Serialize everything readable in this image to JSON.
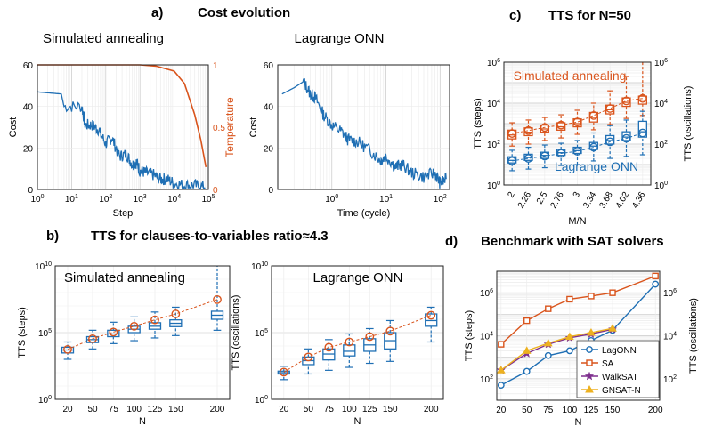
{
  "panels": {
    "a": {
      "letter": "a)",
      "title": "Cost evolution"
    },
    "b": {
      "letter": "b)",
      "title": "TTS for clauses-to-variables ratio≈4.3"
    },
    "c": {
      "letter": "c)",
      "title": "TTS for N=50"
    },
    "d": {
      "letter": "d)",
      "title": "Benchmark with SAT solvers"
    }
  },
  "colors": {
    "blue": "#1f6fb4",
    "orange": "#d9541c",
    "purple": "#7e2f8e",
    "yellow": "#edb120",
    "axis": "#222222",
    "grid": "#d9d9d9"
  },
  "chart_data": [
    {
      "id": "a1",
      "type": "line",
      "subtitle": "Simulated annealing",
      "xlabel": "Step",
      "ylabel": "Cost",
      "y2label": "Temperature",
      "xscale": "log",
      "xlim": [
        1,
        100000
      ],
      "ylim": [
        0,
        60
      ],
      "y2lim": [
        0,
        1
      ],
      "xticks": [
        "10^0",
        "10^1",
        "10^2",
        "10^3",
        "10^4",
        "10^5"
      ],
      "yticks": [
        "0",
        "20",
        "40",
        "60"
      ],
      "y2ticks": [
        "0",
        "0.5",
        "1"
      ],
      "series": [
        {
          "name": "Cost",
          "color": "#1f6fb4",
          "x": [
            1,
            5,
            6,
            20,
            25,
            40,
            60,
            100,
            150,
            250,
            400,
            600,
            800,
            1000,
            1500,
            2500,
            4000,
            6000,
            10000,
            20000,
            40000,
            80000
          ],
          "y": [
            47,
            46,
            40,
            40,
            31,
            31,
            29,
            22,
            25,
            16,
            17,
            12,
            13,
            9,
            8,
            7,
            5,
            5,
            3,
            2,
            2,
            1
          ]
        },
        {
          "name": "Temperature",
          "color": "#d9541c",
          "axis": "right",
          "x": [
            1,
            100,
            1000,
            3000,
            10000,
            20000,
            40000,
            60000,
            85000
          ],
          "y": [
            1,
            1,
            1,
            0.99,
            0.95,
            0.85,
            0.6,
            0.4,
            0.18
          ]
        }
      ]
    },
    {
      "id": "a2",
      "type": "line",
      "subtitle": "Lagrange ONN",
      "xlabel": "Time (cycle)",
      "ylabel": "Cost",
      "xscale": "log",
      "xlim": [
        0.1,
        150
      ],
      "ylim": [
        0,
        60
      ],
      "xticks": [
        "10^0",
        "10^1",
        "10^2"
      ],
      "yticks": [
        "0",
        "20",
        "40",
        "60"
      ],
      "series": [
        {
          "name": "Cost",
          "color": "#1f6fb4",
          "x": [
            0.12,
            0.2,
            0.3,
            0.4,
            0.5,
            0.7,
            1,
            1.5,
            2,
            3,
            5,
            8,
            10,
            15,
            20,
            30,
            50,
            80,
            100,
            130
          ],
          "y": [
            46,
            49,
            52,
            46,
            44,
            36,
            31,
            28,
            24,
            23,
            19,
            14,
            16,
            11,
            12,
            8,
            6,
            8,
            3,
            5
          ]
        }
      ]
    },
    {
      "id": "c",
      "type": "box",
      "xlabel": "M/N",
      "ylabel": "TTS (steps)",
      "y2label": "TTS (oscillations)",
      "yscale": "log",
      "ylim": [
        1,
        1000000
      ],
      "yticks": [
        "10^0",
        "10^2",
        "10^4",
        "10^6"
      ],
      "y2ticks": [
        "10^0",
        "10^2",
        "10^4",
        "10^6"
      ],
      "categories": [
        "2",
        "2.26",
        "2.5",
        "2.76",
        "3",
        "3.34",
        "3.68",
        "4.02",
        "4.36"
      ],
      "annotations": [
        "Simulated annealing",
        "Lagrange ONN"
      ],
      "series": [
        {
          "name": "Simulated annealing",
          "color": "#d9541c",
          "box": {
            "q1": [
              180,
              260,
              380,
              480,
              700,
              1200,
              3000,
              7000,
              9000
            ],
            "median": [
              280,
              380,
              550,
              700,
              1000,
              2000,
              4800,
              11000,
              14000
            ],
            "q3": [
              480,
              620,
              850,
              1100,
              1700,
              3500,
              8000,
              18000,
              22000
            ],
            "wlo": [
              80,
              100,
              150,
              200,
              300,
              500,
              900,
              1800,
              2500
            ],
            "whi": [
              1100,
              1500,
              2000,
              2700,
              4500,
              10000,
              40000,
              200000,
              1000000
            ]
          },
          "mean": [
            330,
            460,
            650,
            850,
            1200,
            2500,
            5500,
            13000,
            17000
          ]
        },
        {
          "name": "Lagrange ONN",
          "color": "#1f6fb4",
          "box": {
            "q1": [
              12,
              16,
              20,
              28,
              35,
              55,
              100,
              150,
              220
            ],
            "median": [
              16,
              22,
              28,
              38,
              48,
              80,
              150,
              220,
              400
            ],
            "q3": [
              24,
              32,
              40,
              55,
              70,
              120,
              260,
              400,
              1300
            ],
            "wlo": [
              5,
              6,
              7,
              9,
              10,
              15,
              20,
              25,
              30
            ],
            "whi": [
              50,
              70,
              90,
              110,
              150,
              350,
              800,
              1500,
              4000
            ]
          },
          "mean": [
            15,
            20,
            26,
            35,
            45,
            70,
            130,
            190,
            350
          ]
        }
      ]
    },
    {
      "id": "b1",
      "type": "box",
      "subtitle": "Simulated annealing",
      "xlabel": "N",
      "ylabel": "TTS (steps)",
      "yscale": "log",
      "ylim": [
        1,
        10000000000
      ],
      "yticks": [
        "10^0",
        "10^5",
        "10^10"
      ],
      "categories": [
        "20",
        "50",
        "75",
        "100",
        "125",
        "150",
        "200"
      ],
      "series": [
        {
          "name": "Simulated annealing",
          "color": "#1f6fb4",
          "box": {
            "q1": [
              3000,
              18000,
              50000,
              100000,
              180000,
              280000,
              1000000
            ],
            "median": [
              5000,
              30000,
              80000,
              180000,
              300000,
              500000,
              2000000
            ],
            "q3": [
              8000,
              50000,
              150000,
              300000,
              550000,
              900000,
              4000000
            ],
            "wlo": [
              1000,
              6000,
              15000,
              25000,
              40000,
              60000,
              150000
            ],
            "whi": [
              20000,
              150000,
              600000,
              1500000,
              3500000,
              8000000,
              10000000000
            ]
          },
          "mean": [
            5500,
            35000,
            110000,
            300000,
            900000,
            2500000,
            30000000
          ]
        }
      ]
    },
    {
      "id": "b2",
      "type": "box",
      "subtitle": "Lagrange ONN",
      "xlabel": "N",
      "ylabel": "TTS (oscillations)",
      "yscale": "log",
      "ylim": [
        1,
        10000000000
      ],
      "yticks": [
        "10^0",
        "10^5",
        "10^10"
      ],
      "categories": [
        "20",
        "50",
        "75",
        "100",
        "125",
        "150",
        "200"
      ],
      "series": [
        {
          "name": "Lagrange ONN",
          "color": "#1f6fb4",
          "box": {
            "q1": [
              80,
              400,
              900,
              1800,
              4000,
              6000,
              300000
            ],
            "median": [
              100,
              800,
              2500,
              4000,
              12000,
              25000,
              800000
            ],
            "q3": [
              130,
              1500,
              6000,
              12000,
              35000,
              100000,
              2500000
            ],
            "wlo": [
              30,
              80,
              150,
              250,
              500,
              700,
              20000
            ],
            "whi": [
              300,
              6000,
              30000,
              80000,
              200000,
              800000,
              8000000
            ]
          },
          "mean": [
            110,
            1500,
            8000,
            20000,
            50000,
            130000,
            2000000
          ]
        }
      ]
    },
    {
      "id": "d",
      "type": "line",
      "xlabel": "N",
      "ylabel": "TTS (steps)",
      "y2label": "TTS (oscillations)",
      "yscale": "log",
      "ylim": [
        10,
        10000000
      ],
      "yticks": [
        "10^2",
        "10^4",
        "10^6"
      ],
      "y2ticks": [
        "10^2",
        "10^4",
        "10^6"
      ],
      "categories": [
        "20",
        "50",
        "75",
        "100",
        "125",
        "150",
        "200"
      ],
      "legend": "bottom-right",
      "series": [
        {
          "name": "LagONN",
          "color": "#1f6fb4",
          "marker": "circle",
          "values": [
            50,
            220,
            1200,
            2000,
            6000,
            18000,
            2500000
          ]
        },
        {
          "name": "SA",
          "color": "#d9541c",
          "marker": "square",
          "values": [
            4000,
            50000,
            180000,
            500000,
            700000,
            1000000,
            6000000
          ]
        },
        {
          "name": "WalkSAT",
          "color": "#7e2f8e",
          "marker": "star",
          "values": [
            250,
            1500,
            4000,
            8000,
            12000,
            20000,
            null
          ]
        },
        {
          "name": "GNSAT-N",
          "color": "#edb120",
          "marker": "triangle",
          "values": [
            250,
            2000,
            4500,
            9000,
            14000,
            22000,
            null
          ]
        }
      ]
    }
  ]
}
